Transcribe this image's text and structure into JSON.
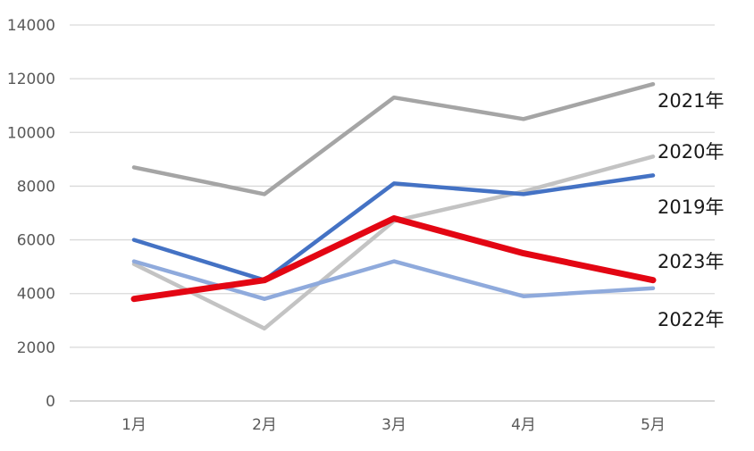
{
  "chart_data": {
    "type": "line",
    "categories": [
      "1月",
      "2月",
      "3月",
      "4月",
      "5月"
    ],
    "ylim": [
      0,
      14000
    ],
    "yticks": [
      0,
      2000,
      4000,
      6000,
      8000,
      10000,
      12000,
      14000
    ],
    "grid": true,
    "legend": "none",
    "series": [
      {
        "name": "2021年",
        "values": [
          8700,
          7700,
          11300,
          10500,
          11800
        ],
        "color": "#a5a5a5"
      },
      {
        "name": "2020年",
        "values": [
          5100,
          2700,
          6700,
          7800,
          9100
        ],
        "color": "#c3c3c3"
      },
      {
        "name": "2019年",
        "values": [
          6000,
          4500,
          8100,
          7700,
          8400
        ],
        "color": "#4472c4"
      },
      {
        "name": "2022年",
        "values": [
          5200,
          3800,
          5200,
          3900,
          4200
        ],
        "color": "#8faadc"
      },
      {
        "name": "2023年",
        "values": [
          3800,
          4500,
          6800,
          5500,
          4500
        ],
        "color": "#e30613"
      }
    ]
  }
}
